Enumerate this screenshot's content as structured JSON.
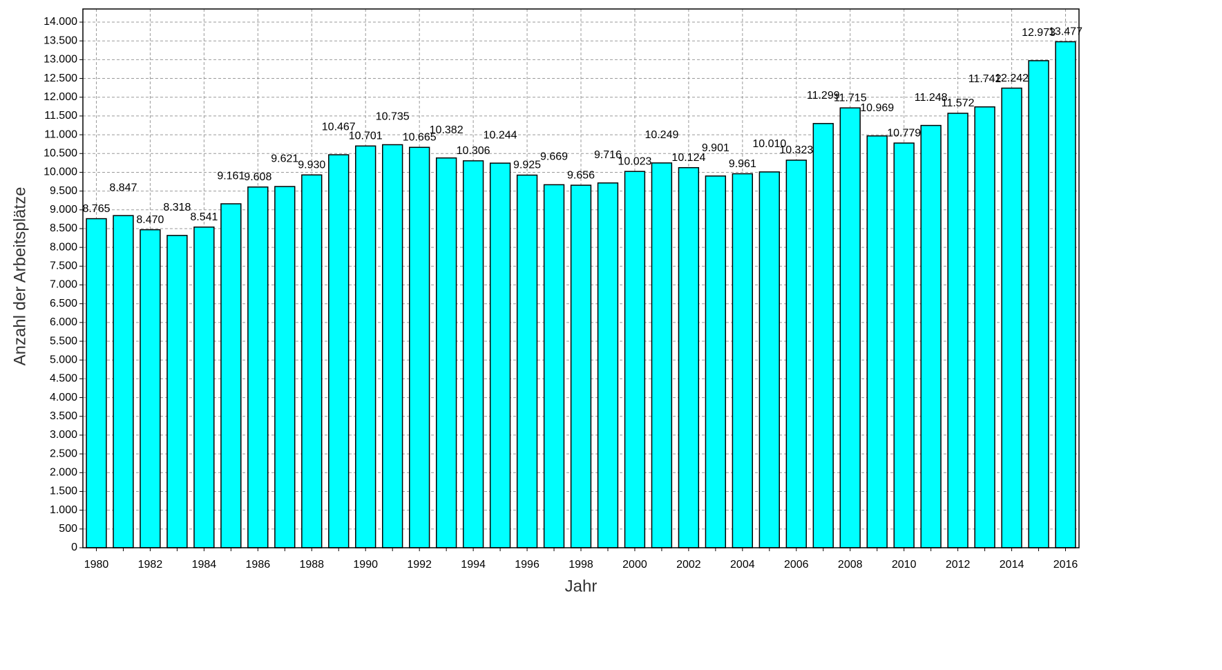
{
  "chart_data": {
    "type": "bar",
    "x_label": "Jahr",
    "y_label": "Anzahl der Arbeitsplätze",
    "categories": [
      "1980",
      null,
      "1982",
      null,
      "1984",
      null,
      "1986",
      null,
      "1988",
      null,
      "1990",
      null,
      "1992",
      null,
      "1994",
      null,
      "1996",
      null,
      "1998",
      null,
      "2000",
      null,
      "2002",
      null,
      "2004",
      null,
      "2006",
      null,
      "2008",
      null,
      "2010",
      null,
      "2012",
      null,
      "2014",
      null,
      "2016"
    ],
    "values": [
      8765,
      8847,
      8470,
      8318,
      8541,
      9161,
      9608,
      9621,
      9930,
      10467,
      10701,
      10735,
      10665,
      10382,
      10306,
      10244,
      9925,
      9669,
      9656,
      9716,
      10023,
      10249,
      10124,
      9901,
      9961,
      10010,
      10323,
      11299,
      11715,
      10969,
      10779,
      11248,
      11572,
      11742,
      12242,
      12973,
      13477
    ],
    "value_labels": [
      "8.765",
      "8.847",
      "8.470",
      "8.318",
      "8.541",
      "9.161",
      "9.608",
      "9.621",
      "9.930",
      "10.467",
      "10.701",
      "10.735",
      "10.665",
      "10.382",
      "10.306",
      "10.244",
      "9.925",
      "9.669",
      "9.656",
      "9.716",
      "10.023",
      "10.249",
      "10.124",
      "9.901",
      "9.961",
      "10.010",
      "10.323",
      "11.299",
      "11.715",
      "10.969",
      "10.779",
      "11.248",
      "11.572",
      "11.742",
      "12.242",
      "12.973",
      "13.477"
    ],
    "color": "#00ffff",
    "ylim": [
      0,
      14350
    ],
    "yticks": [
      0,
      500,
      {
        "value": 1000,
        "label": "1.000"
      },
      {
        "value": 1500,
        "label": "1.500"
      },
      {
        "value": 2000,
        "label": "2.000"
      },
      {
        "value": 2500,
        "label": "2.500"
      },
      {
        "value": 3000,
        "label": "3.000"
      },
      {
        "value": 3500,
        "label": "3.500"
      },
      {
        "value": 4000,
        "label": "4.000"
      },
      {
        "value": 4500,
        "label": "4.500"
      },
      {
        "value": 5000,
        "label": "5.000"
      },
      {
        "value": 5500,
        "label": "5.500"
      },
      {
        "value": 6000,
        "label": "6.000"
      },
      {
        "value": 6500,
        "label": "6.500"
      },
      {
        "value": 7000,
        "label": "7.000"
      },
      {
        "value": 7500,
        "label": "7.500"
      },
      {
        "value": 8000,
        "label": "8.000"
      },
      {
        "value": 8500,
        "label": "8.500"
      },
      {
        "value": 9000,
        "label": "9.000"
      },
      {
        "value": 9500,
        "label": "9.500"
      },
      {
        "value": 10000,
        "label": "10.000"
      },
      {
        "value": 10500,
        "label": "10.500"
      },
      {
        "value": 11000,
        "label": "11.000"
      },
      {
        "value": 11500,
        "label": "11.500"
      },
      {
        "value": 12000,
        "label": "12.000"
      },
      {
        "value": 12500,
        "label": "12.500"
      },
      {
        "value": 13000,
        "label": "13.000"
      },
      {
        "value": 13500,
        "label": "13.500"
      },
      {
        "value": 14000,
        "label": "14.000"
      }
    ],
    "grid": true
  }
}
